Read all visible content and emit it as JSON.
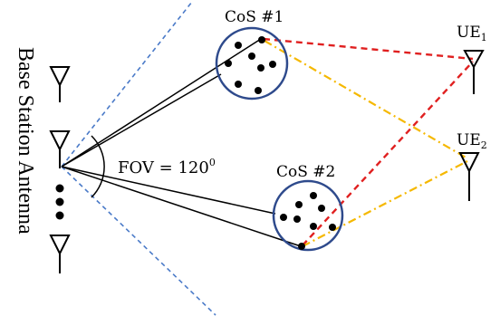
{
  "labels": {
    "antenna_title": "Base Station Antenna",
    "cos1": "CoS #1",
    "cos2": "CoS #2",
    "ue1_base": "UE",
    "ue1_sub": "1",
    "ue2_base": "UE",
    "ue2_sub": "2",
    "fov_prefix": "FOV = 120",
    "fov_sup": "0"
  },
  "colors": {
    "cluster_circle": "#2e4a8c",
    "fov_dashed": "#4a7ac8",
    "path_red": "#e02020",
    "path_yellow": "#f5b800",
    "line_black": "#000000"
  }
}
